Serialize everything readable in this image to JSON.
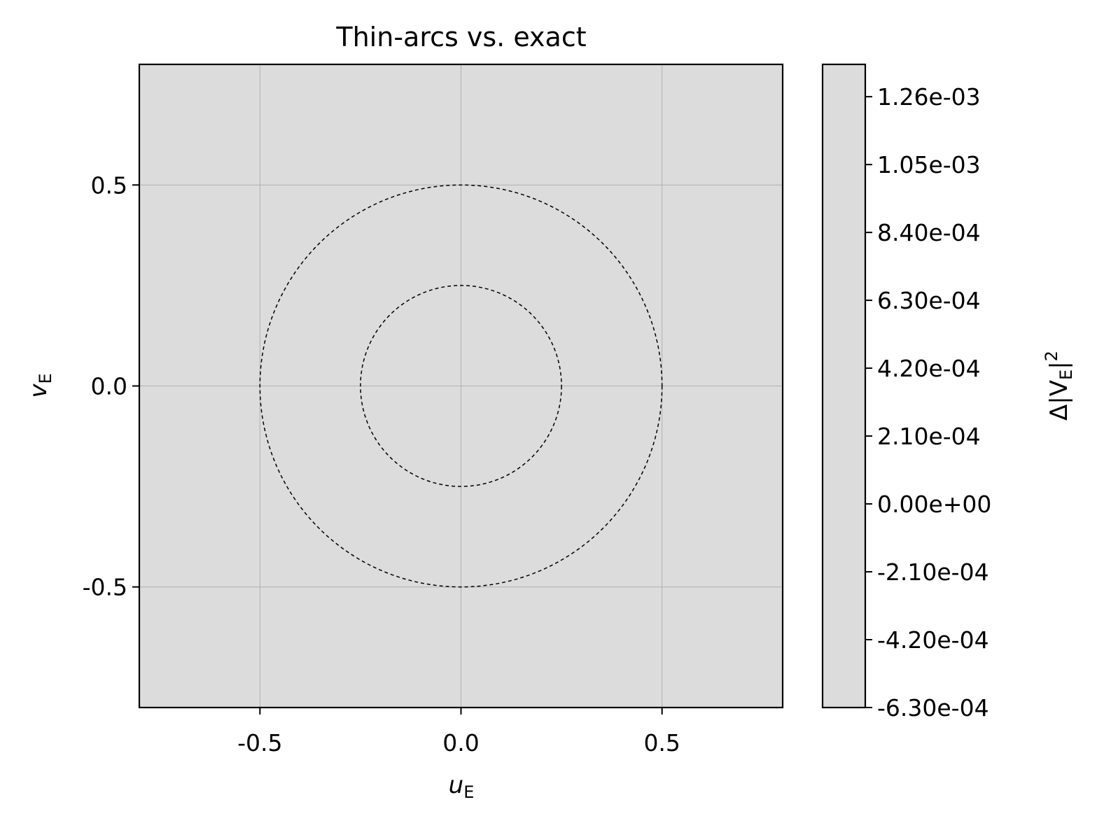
{
  "chart_data": {
    "type": "heatmap",
    "title": "Thin-arcs vs. exact",
    "xlabel": {
      "main": "u",
      "sub": "E"
    },
    "ylabel": {
      "main": "v",
      "sub": "E"
    },
    "xlim": [
      -0.8,
      0.8
    ],
    "ylim": [
      -0.8,
      0.8
    ],
    "xticks": [
      -0.5,
      0.0,
      0.5
    ],
    "xtick_labels": [
      "-0.5",
      "0.0",
      "0.5"
    ],
    "yticks": [
      0.5,
      0.0,
      -0.5
    ],
    "ytick_labels": [
      "0.5",
      "0.0",
      "-0.5"
    ],
    "grid": true,
    "field_color": "#dcdcdc",
    "circles": [
      {
        "center": [
          0,
          0
        ],
        "radius": 0.25,
        "style": "dashed",
        "color": "#000000"
      },
      {
        "center": [
          0,
          0
        ],
        "radius": 0.5,
        "style": "dashed",
        "color": "#000000"
      }
    ],
    "colorbar": {
      "label": {
        "prefix": "Δ|V",
        "sub": "E",
        "suffix": "|",
        "sup": "2"
      },
      "range": [
        -0.00063,
        0.00136
      ],
      "ticks": [
        0.00126,
        0.00105,
        0.00084,
        0.00063,
        0.00042,
        0.00021,
        0.0,
        -0.00021,
        -0.00042,
        -0.00063
      ],
      "tick_labels": [
        "1.26e-03",
        "1.05e-03",
        "8.40e-04",
        "6.30e-04",
        "4.20e-04",
        "2.10e-04",
        "0.00e+00",
        "-2.10e-04",
        "-4.20e-04",
        "-6.30e-04"
      ],
      "color": "#dcdcdc"
    }
  }
}
